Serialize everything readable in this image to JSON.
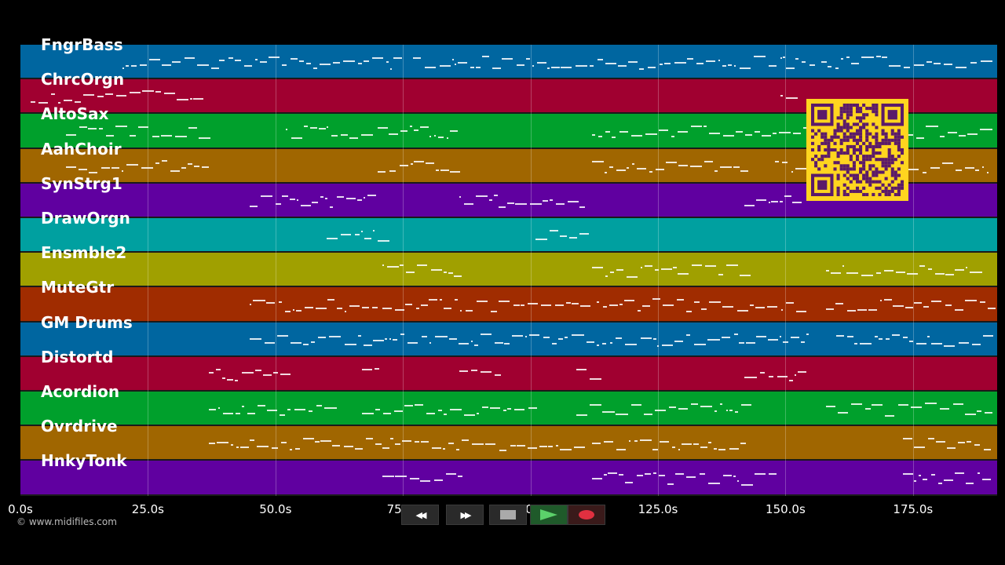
{
  "app": {
    "copyright": "© www.midifiles.com"
  },
  "timeline": {
    "ticks": [
      "0.0s",
      "25.0s",
      "50.0s",
      "75.0s",
      "100.0s",
      "125.0s",
      "150.0s",
      "175.0s"
    ],
    "tick_seconds": [
      0,
      25,
      50,
      75,
      100,
      125,
      150,
      175
    ],
    "duration_seconds": 191.5
  },
  "tracks": [
    {
      "name": "FngrBass",
      "color": "#0066a0"
    },
    {
      "name": "ChrcOrgn",
      "color": "#a00030"
    },
    {
      "name": "AltoSax",
      "color": "#00a02c"
    },
    {
      "name": "AahChoir",
      "color": "#a06600"
    },
    {
      "name": "SynStrg1",
      "color": "#6000a0"
    },
    {
      "name": "DrawOrgn",
      "color": "#00a0a0"
    },
    {
      "name": "Ensmble2",
      "color": "#a0a000"
    },
    {
      "name": "MuteGtr",
      "color": "#a02c00"
    },
    {
      "name": "GM Drums",
      "color": "#0066a0"
    },
    {
      "name": "Distortd",
      "color": "#a00030"
    },
    {
      "name": "Acordion",
      "color": "#00a02c"
    },
    {
      "name": "Ovrdrive",
      "color": "#a06600"
    },
    {
      "name": "HnkyTonk",
      "color": "#6000a0"
    }
  ],
  "transport": {
    "rewind_icon": "rewind-icon",
    "fast_forward_icon": "fast-forward-icon",
    "stop_icon": "stop-icon",
    "play_icon": "play-icon",
    "record_icon": "record-icon",
    "rewind_glyph": "◀◀",
    "fast_forward_glyph": "▶▶"
  },
  "qr": {
    "icon": "qr-code-icon",
    "color_fg": "#5a1a6a",
    "color_bg": "#ffd51f"
  }
}
